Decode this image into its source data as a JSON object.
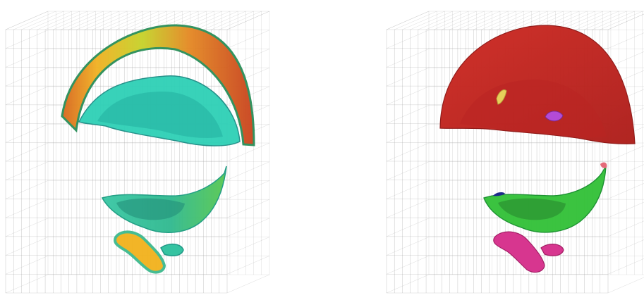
{
  "figure": {
    "panels": [
      {
        "id": "left",
        "rendering": "scalar-field-colormap",
        "colormap": [
          "#2fd3b8",
          "#3fbf6a",
          "#9ccc2b",
          "#e8d21a",
          "#f08a1c",
          "#d63a1e"
        ],
        "upper_blob_colors": [
          "#d93a25",
          "#f07a2a",
          "#f2c12c",
          "#7ccf34",
          "#2fbf82"
        ],
        "lower_blob_colors": [
          "#39c6a4",
          "#5cc96f",
          "#b7d233",
          "#f2b21c"
        ]
      },
      {
        "id": "right",
        "rendering": "segmented-components",
        "components": [
          {
            "name": "upper-body",
            "color": "#d42a23"
          },
          {
            "name": "lower-body",
            "color": "#35c23a"
          },
          {
            "name": "bottom-fragment",
            "color": "#d7368f"
          },
          {
            "name": "small-violet-fragment",
            "color": "#b34bd6"
          },
          {
            "name": "small-yellow-fragment",
            "color": "#e7cf5a"
          },
          {
            "name": "small-pink-fragment",
            "color": "#e56b7a"
          },
          {
            "name": "small-navy-fragment",
            "color": "#1d2a8a"
          }
        ]
      }
    ],
    "grid_color": "#9a9a9a"
  }
}
